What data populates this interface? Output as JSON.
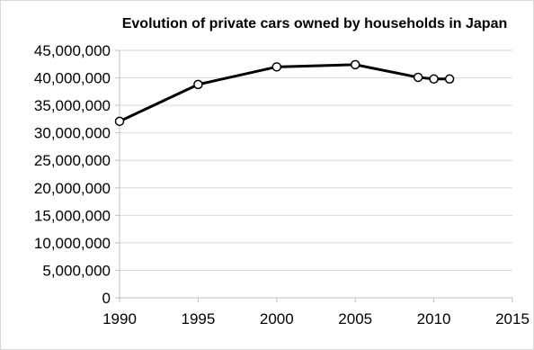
{
  "chart_data": {
    "type": "line",
    "title": "Evolution of private cars owned by households in Japan",
    "xlabel": "",
    "ylabel": "",
    "xlim": [
      1990,
      2015
    ],
    "ylim": [
      0,
      45000000
    ],
    "x_ticks": [
      1990,
      1995,
      2000,
      2005,
      2010,
      2015
    ],
    "y_ticks": [
      0,
      5000000,
      10000000,
      15000000,
      20000000,
      25000000,
      30000000,
      35000000,
      40000000,
      45000000
    ],
    "x_tick_labels": [
      "1990",
      "1995",
      "2000",
      "2005",
      "2010",
      "2015"
    ],
    "y_tick_labels": [
      "0",
      "5,000,000",
      "10,000,000",
      "15,000,000",
      "20,000,000",
      "25,000,000",
      "30,000,000",
      "35,000,000",
      "40,000,000",
      "45,000,000"
    ],
    "grid": "horizontal",
    "legend": "none",
    "series": [
      {
        "x": [
          1990,
          1995,
          2000,
          2005,
          2009,
          2010,
          2011
        ],
        "y": [
          32100000,
          38800000,
          42000000,
          42400000,
          40100000,
          39800000,
          39800000
        ]
      }
    ],
    "colors": {
      "line": "#000000",
      "marker_fill": "#ffffff",
      "marker_stroke": "#000000",
      "grid": "#d9d9d9",
      "axis": "#bfbfbf"
    }
  }
}
